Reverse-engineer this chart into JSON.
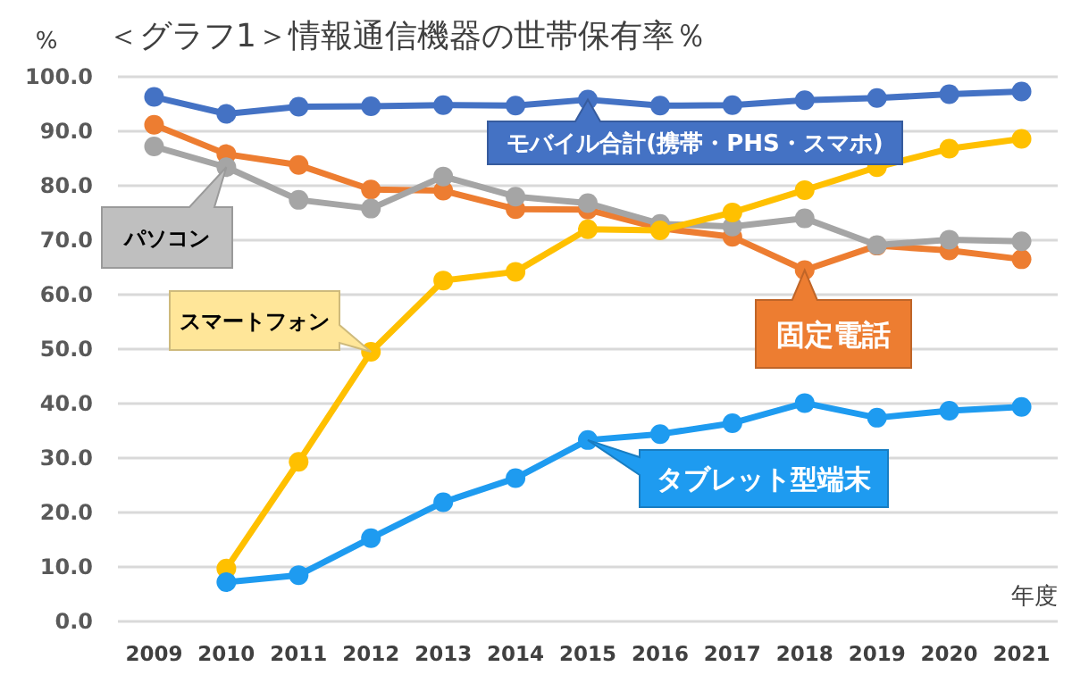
{
  "chart_data": {
    "type": "line",
    "title": "＜グラフ1＞情報通信機器の世帯保有率％",
    "ylabel": "%",
    "xlabel": "年度",
    "categories": [
      "2009",
      "2010",
      "2011",
      "2012",
      "2013",
      "2014",
      "2015",
      "2016",
      "2017",
      "2018",
      "2019",
      "2020",
      "2021"
    ],
    "series": [
      {
        "name": "モバイル合計(携帯・PHS・スマホ)",
        "color": "#4472c4",
        "values": [
          96.3,
          93.2,
          94.5,
          94.6,
          94.8,
          94.7,
          95.8,
          94.7,
          94.8,
          95.7,
          96.1,
          96.8,
          97.3
        ]
      },
      {
        "name": "固定電話",
        "color": "#ed7d31",
        "values": [
          91.2,
          85.8,
          83.8,
          79.3,
          79.1,
          75.7,
          75.6,
          72.2,
          70.6,
          64.5,
          69.0,
          68.1,
          66.5
        ]
      },
      {
        "name": "パソコン",
        "color": "#a5a5a5",
        "values": [
          87.2,
          83.4,
          77.4,
          75.8,
          81.7,
          78.0,
          76.8,
          73.0,
          72.5,
          74.0,
          69.1,
          70.1,
          69.8
        ]
      },
      {
        "name": "スマートフォン",
        "color": "#ffc000",
        "values": [
          null,
          9.7,
          29.3,
          49.5,
          62.6,
          64.2,
          72.0,
          71.8,
          75.1,
          79.2,
          83.4,
          86.8,
          88.6
        ]
      },
      {
        "name": "タブレット型端末",
        "color": "#1e9bf0",
        "values": [
          null,
          7.2,
          8.5,
          15.3,
          21.9,
          26.3,
          33.3,
          34.4,
          36.4,
          40.1,
          37.4,
          38.7,
          39.4
        ]
      }
    ],
    "ylim": [
      0,
      100
    ],
    "yticks": [
      {
        "value": 0,
        "label": "0.0"
      },
      {
        "value": 10,
        "label": "10.0"
      },
      {
        "value": 20,
        "label": "20.0"
      },
      {
        "value": 30,
        "label": "30.0"
      },
      {
        "value": 40,
        "label": "40.0"
      },
      {
        "value": 50,
        "label": "50.0"
      },
      {
        "value": 60,
        "label": "60.0"
      },
      {
        "value": 70,
        "label": "70.0"
      },
      {
        "value": 80,
        "label": "80.0"
      },
      {
        "value": 90,
        "label": "90.0"
      },
      {
        "value": 100,
        "label": "100.0"
      }
    ],
    "grid": "y",
    "legend": false,
    "marker": "circle",
    "line_style": "solid"
  }
}
